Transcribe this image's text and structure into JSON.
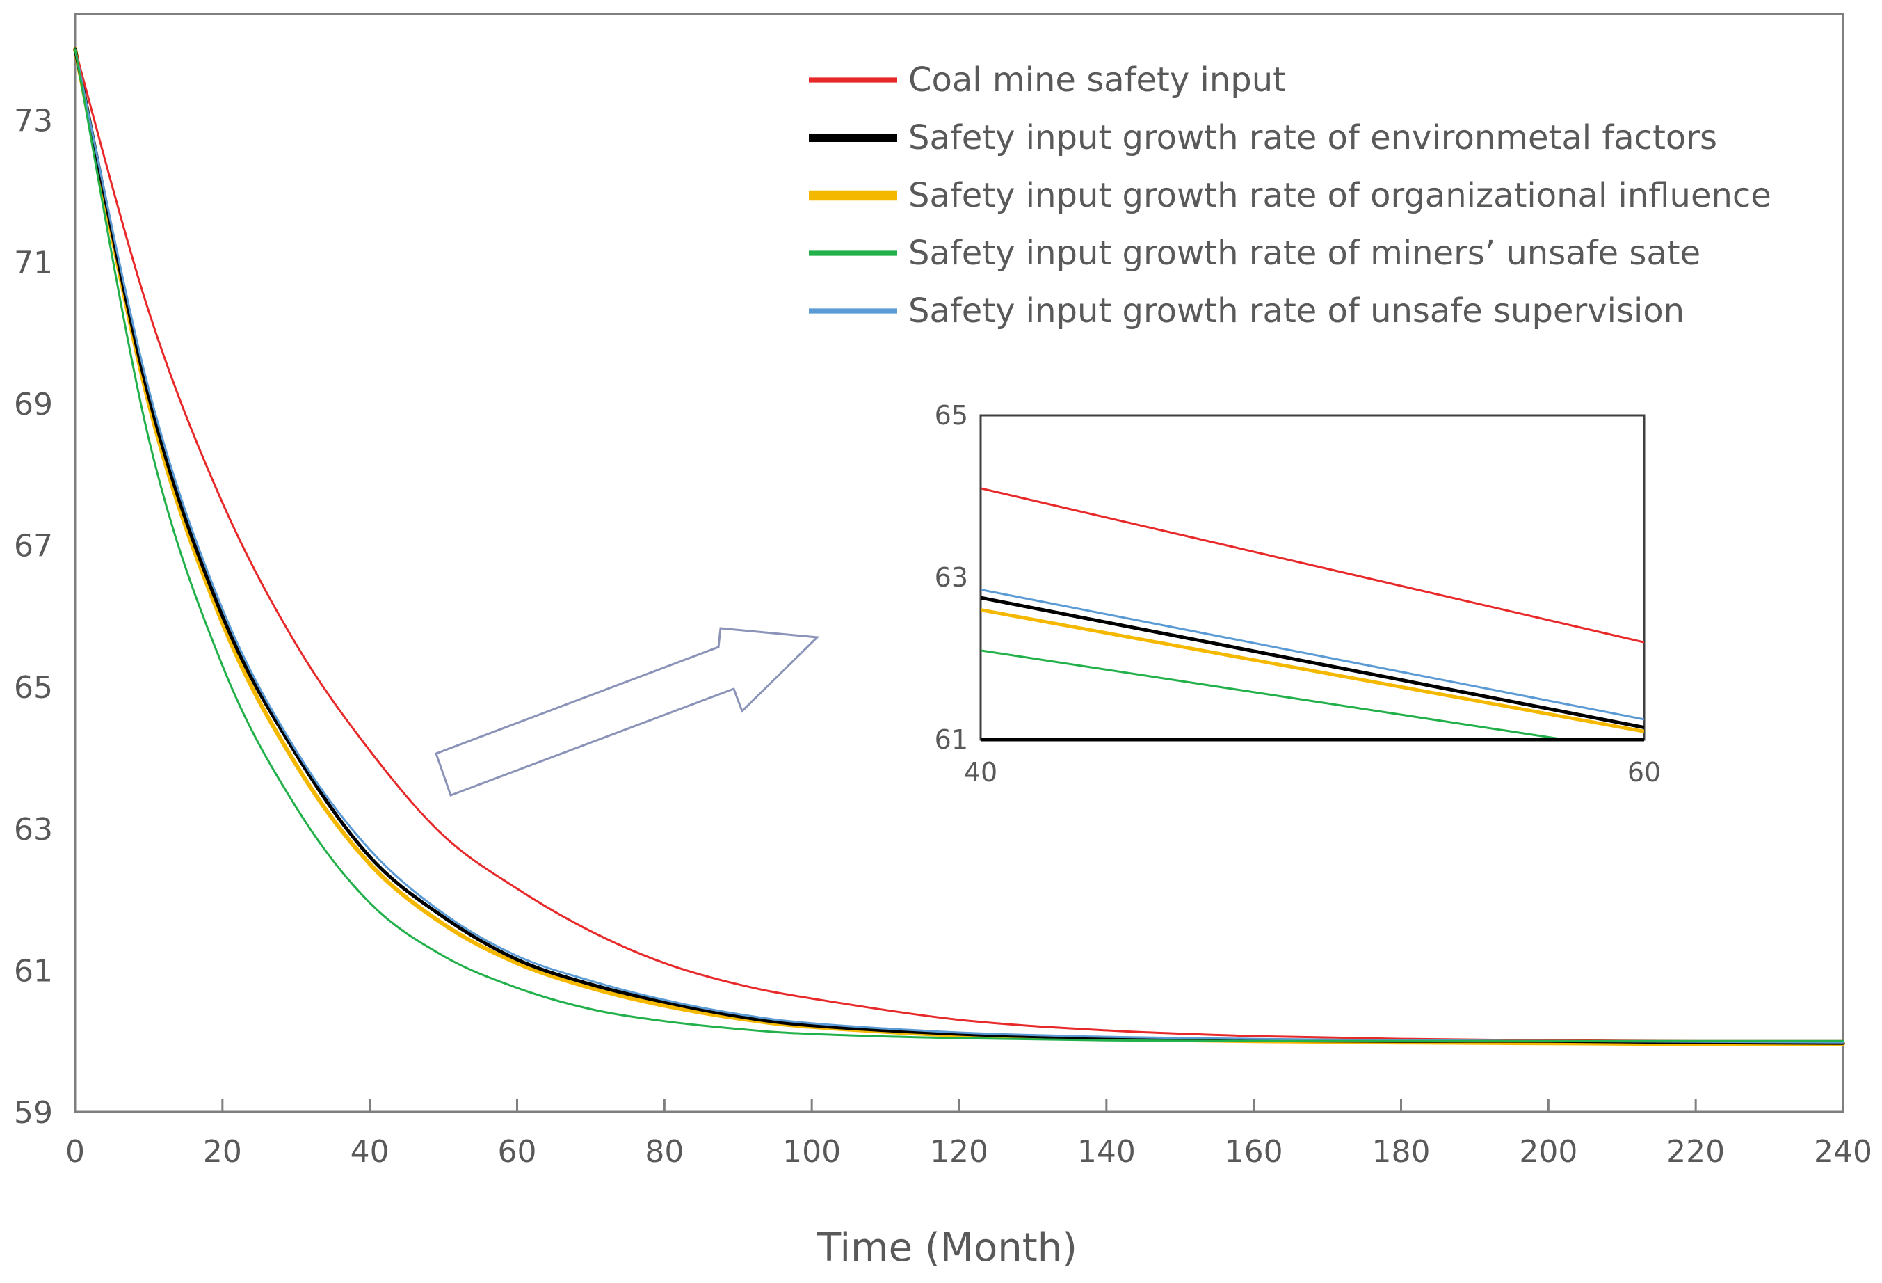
{
  "chart_data": {
    "type": "line",
    "title": "",
    "xlabel": "Time (Month)",
    "ylabel": "",
    "xlim": [
      0,
      240
    ],
    "ylim": [
      59,
      74.5
    ],
    "xticks": [
      0,
      20,
      40,
      60,
      80,
      100,
      120,
      140,
      160,
      180,
      200,
      220,
      240
    ],
    "yticks": [
      59,
      61,
      63,
      65,
      67,
      69,
      71,
      73
    ],
    "x": [
      0,
      10,
      20,
      30,
      40,
      50,
      60,
      70,
      80,
      90,
      100,
      120,
      140,
      160,
      180,
      200,
      220,
      240
    ],
    "series": [
      {
        "name": "Coal mine safety input",
        "color": "#e8292a",
        "width": 3,
        "values": [
          74.0,
          70.3,
          67.6,
          65.6,
          64.1,
          62.9,
          62.15,
          61.55,
          61.1,
          60.8,
          60.6,
          60.3,
          60.15,
          60.07,
          60.03,
          60.01,
          60.0,
          60.0
        ]
      },
      {
        "name": "Safety input growth rate of environmetal factors",
        "color": "#000000",
        "width": 5,
        "values": [
          74.0,
          69.1,
          66.0,
          64.05,
          62.6,
          61.75,
          61.15,
          60.8,
          60.55,
          60.35,
          60.22,
          60.1,
          60.04,
          60.01,
          60.0,
          60.0,
          59.98,
          59.97
        ]
      },
      {
        "name": "Safety input growth rate of organizational influence",
        "color": "#f5b800",
        "width": 6,
        "values": [
          74.0,
          69.0,
          65.9,
          63.9,
          62.5,
          61.65,
          61.1,
          60.75,
          60.5,
          60.32,
          60.2,
          60.08,
          60.03,
          60.0,
          59.98,
          59.97,
          59.96,
          59.96
        ]
      },
      {
        "name": "Safety input growth rate of miners’ unsafe sate",
        "color": "#22b04a",
        "width": 3,
        "values": [
          74.0,
          68.5,
          65.3,
          63.3,
          61.95,
          61.2,
          60.75,
          60.45,
          60.28,
          60.17,
          60.1,
          60.04,
          60.01,
          60.0,
          60.0,
          60.0,
          60.0,
          60.0
        ]
      },
      {
        "name": "Safety input growth rate of unsafe supervision",
        "color": "#5b9bd5",
        "width": 3,
        "values": [
          74.0,
          69.2,
          66.1,
          64.1,
          62.7,
          61.8,
          61.2,
          60.85,
          60.58,
          60.38,
          60.25,
          60.12,
          60.06,
          60.03,
          60.01,
          60.0,
          59.99,
          59.98
        ]
      }
    ],
    "legend_position": "top-right",
    "inset": {
      "xlim": [
        40,
        60
      ],
      "ylim": [
        61,
        65
      ],
      "xticks": [
        40,
        60
      ],
      "yticks": [
        61,
        63,
        65
      ],
      "lines": [
        {
          "name": "Coal mine safety input",
          "start": 64.1,
          "end": 62.2
        },
        {
          "name": "Safety input growth rate of environmetal factors",
          "start": 62.75,
          "end": 61.15
        },
        {
          "name": "Safety input growth rate of organizational influence",
          "start": 62.6,
          "end": 61.1
        },
        {
          "name": "Safety input growth rate of miners’ unsafe sate",
          "start": 62.1,
          "end": 60.85
        },
        {
          "name": "Safety input growth rate of unsafe supervision",
          "start": 62.85,
          "end": 61.25
        }
      ]
    },
    "annotation": "arrow pointing from the 40–60 month region of the main curves to the zoomed inset"
  }
}
